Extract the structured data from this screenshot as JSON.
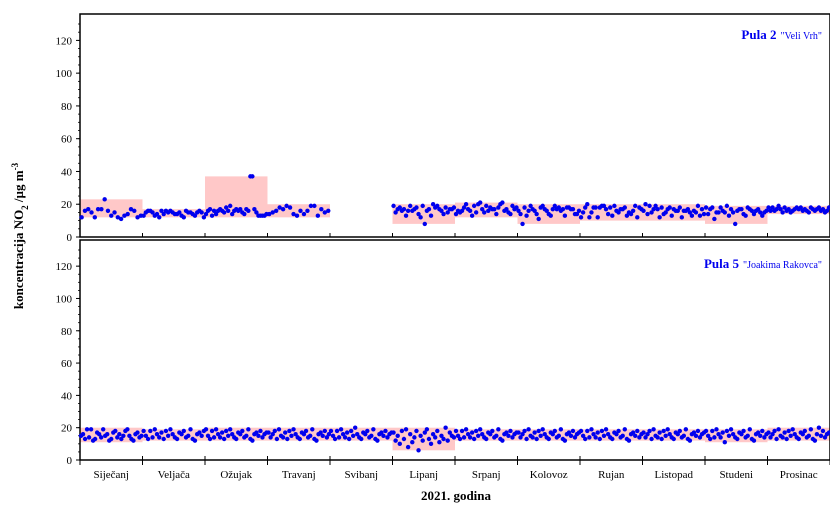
{
  "chart_data": {
    "type": "scatter",
    "xlabel": "2021. godina",
    "ylabel_main": "koncentracija NO",
    "ylabel_sub": "2",
    "ylabel_rest": " /µg m",
    "ylabel_sup": "-3",
    "ylim": [
      0,
      130
    ],
    "yticks": [
      "0",
      "20",
      "40",
      "60",
      "80",
      "100",
      "120"
    ],
    "months": [
      "Siječanj",
      "Veljača",
      "Ožujak",
      "Travanj",
      "Svibanj",
      "Lipanj",
      "Srpanj",
      "Kolovoz",
      "Rujan",
      "Listopad",
      "Studeni",
      "Prosinac"
    ],
    "grid": false,
    "panels": [
      {
        "station_bold": "Pula 2",
        "station_small": "\"Veli Vrh\"",
        "accent_color": "#0000ee",
        "band_color": "#ffc8c8",
        "monthly_range": [
          [
            12,
            23
          ],
          [
            12,
            17
          ],
          [
            12,
            37
          ],
          [
            12,
            20
          ],
          null,
          [
            8,
            20
          ],
          [
            12,
            21
          ],
          [
            8,
            20
          ],
          [
            10,
            20
          ],
          [
            10,
            20
          ],
          [
            8,
            19
          ],
          [
            14,
            19
          ]
        ],
        "values": [
          [
            12,
            16,
            17,
            15,
            12,
            17,
            17,
            23,
            16,
            13,
            15,
            12,
            11,
            13,
            14,
            17,
            16,
            12,
            13
          ],
          [
            13,
            15,
            16,
            16,
            15,
            13,
            14,
            12,
            16,
            14,
            16,
            15,
            16,
            15,
            14,
            14,
            15,
            13,
            12,
            16,
            15,
            15,
            14,
            13,
            15,
            16,
            15,
            12
          ],
          [
            14,
            16,
            17,
            13,
            16,
            14,
            16,
            17,
            16,
            15,
            18,
            16,
            19,
            14,
            16,
            17,
            16,
            17,
            15,
            14,
            17,
            16,
            37,
            37,
            17,
            15,
            13,
            13,
            13,
            13,
            14
          ],
          [
            14,
            15,
            16,
            18,
            17,
            19,
            18,
            14,
            13,
            16,
            14,
            16,
            19,
            19,
            13,
            17,
            15,
            16
          ],
          [],
          [
            19,
            15,
            17,
            18,
            16,
            17,
            13,
            16,
            19,
            16,
            17,
            18,
            14,
            12,
            19,
            8,
            16,
            17,
            13,
            20,
            18,
            19,
            17,
            16,
            14,
            18,
            15,
            17,
            17,
            18
          ],
          [
            14,
            16,
            15,
            16,
            18,
            20,
            17,
            16,
            13,
            19,
            15,
            20,
            21,
            17,
            15,
            19,
            16,
            18,
            17,
            17,
            14,
            18,
            20,
            21,
            16,
            17,
            15,
            14,
            19,
            17,
            18
          ],
          [
            16,
            14,
            8,
            18,
            13,
            16,
            19,
            17,
            16,
            14,
            11,
            18,
            19,
            17,
            16,
            14,
            13,
            17,
            19,
            17,
            18,
            16,
            17,
            13,
            18,
            18,
            17,
            17,
            14,
            14,
            16
          ],
          [
            12,
            15,
            18,
            20,
            12,
            15,
            18,
            18,
            12,
            18,
            19,
            19,
            17,
            14,
            18,
            13,
            19,
            16,
            15,
            17,
            17,
            18,
            13,
            15,
            14,
            16,
            19,
            12,
            18,
            17
          ],
          [
            16,
            20,
            14,
            19,
            15,
            17,
            19,
            17,
            12,
            18,
            14,
            15,
            17,
            18,
            13,
            17,
            16,
            16,
            18,
            12,
            16,
            16,
            17,
            15,
            13,
            16,
            15,
            19,
            13,
            17,
            14
          ],
          [
            18,
            14,
            17,
            18,
            11,
            15,
            15,
            18,
            16,
            15,
            19,
            13,
            17,
            15,
            8,
            16,
            17,
            17,
            14,
            13,
            18,
            17,
            16,
            14,
            16,
            17,
            15,
            13,
            15,
            16
          ],
          [
            18,
            16,
            18,
            16,
            17,
            19,
            17,
            15,
            18,
            16,
            17,
            15,
            16,
            17,
            18,
            17,
            18,
            16,
            17,
            16,
            15,
            18,
            17,
            16,
            17,
            18,
            16,
            17,
            15,
            16,
            18
          ]
        ]
      },
      {
        "station_bold": "Pula 5",
        "station_small": "\"Joakima Rakovca\"",
        "accent_color": "#0000ee",
        "band_color": "#ffc8c8",
        "monthly_range": [
          [
            11,
            20
          ],
          [
            12,
            19
          ],
          [
            12,
            20
          ],
          [
            12,
            20
          ],
          [
            12,
            20
          ],
          [
            6,
            20
          ],
          [
            12,
            19
          ],
          [
            12,
            19
          ],
          [
            12,
            19
          ],
          [
            12,
            19
          ],
          [
            11,
            19
          ],
          [
            12,
            20
          ]
        ],
        "values": [
          [
            15,
            16,
            13,
            19,
            14,
            19,
            12,
            13,
            17,
            16,
            14,
            19,
            15,
            16,
            12,
            13,
            17,
            18,
            14,
            16,
            13,
            15,
            18,
            19,
            15,
            13,
            12,
            16,
            17,
            14,
            15
          ],
          [
            18,
            15,
            13,
            18,
            14,
            19,
            16,
            14,
            17,
            13,
            18,
            15,
            19,
            16,
            14,
            13,
            17,
            16,
            18,
            14,
            15,
            19,
            13,
            12,
            16,
            17,
            15,
            18
          ],
          [
            19,
            15,
            13,
            18,
            14,
            19,
            16,
            14,
            17,
            13,
            18,
            15,
            19,
            16,
            14,
            13,
            17,
            16,
            18,
            14,
            15,
            19,
            13,
            12,
            16,
            17,
            15,
            18,
            14,
            16,
            17
          ],
          [
            17,
            14,
            16,
            18,
            13,
            19,
            15,
            14,
            17,
            13,
            18,
            15,
            19,
            16,
            14,
            13,
            17,
            16,
            18,
            14,
            15,
            19,
            13,
            12,
            16,
            17,
            15,
            18,
            14,
            16
          ],
          [
            18,
            15,
            13,
            18,
            14,
            19,
            16,
            14,
            17,
            13,
            18,
            15,
            20,
            16,
            14,
            13,
            17,
            16,
            18,
            14,
            15,
            19,
            13,
            12,
            16,
            17,
            15,
            18,
            14,
            16,
            17
          ],
          [
            17,
            12,
            15,
            10,
            18,
            13,
            19,
            8,
            16,
            11,
            14,
            18,
            6,
            15,
            12,
            17,
            19,
            13,
            10,
            16,
            14,
            18,
            11,
            15,
            13,
            20,
            12,
            17,
            15,
            14
          ],
          [
            18,
            15,
            13,
            18,
            14,
            19,
            16,
            14,
            17,
            13,
            18,
            15,
            19,
            16,
            14,
            13,
            17,
            16,
            18,
            14,
            15,
            19,
            13,
            12,
            16,
            17,
            15,
            18,
            14,
            16,
            17
          ],
          [
            17,
            14,
            16,
            18,
            13,
            19,
            15,
            14,
            17,
            13,
            18,
            15,
            19,
            16,
            14,
            13,
            17,
            16,
            18,
            14,
            15,
            19,
            13,
            12,
            16,
            17,
            15,
            18,
            14,
            16,
            17
          ],
          [
            18,
            15,
            13,
            18,
            14,
            19,
            16,
            14,
            17,
            13,
            18,
            15,
            19,
            16,
            14,
            13,
            17,
            16,
            18,
            14,
            15,
            19,
            13,
            12,
            16,
            17,
            15,
            18,
            14,
            16
          ],
          [
            17,
            14,
            16,
            18,
            13,
            19,
            15,
            14,
            17,
            13,
            18,
            15,
            19,
            16,
            14,
            13,
            17,
            16,
            18,
            14,
            15,
            19,
            13,
            12,
            16,
            17,
            15,
            18,
            14,
            16,
            17
          ],
          [
            18,
            15,
            13,
            18,
            14,
            19,
            16,
            14,
            17,
            11,
            18,
            15,
            19,
            16,
            14,
            13,
            17,
            16,
            18,
            14,
            15,
            19,
            13,
            12,
            16,
            17,
            15,
            18,
            14,
            16
          ],
          [
            17,
            14,
            16,
            18,
            13,
            19,
            15,
            14,
            17,
            13,
            18,
            15,
            19,
            16,
            14,
            13,
            17,
            16,
            18,
            14,
            15,
            19,
            13,
            12,
            16,
            20,
            15,
            18,
            14,
            16,
            17
          ]
        ]
      }
    ]
  }
}
